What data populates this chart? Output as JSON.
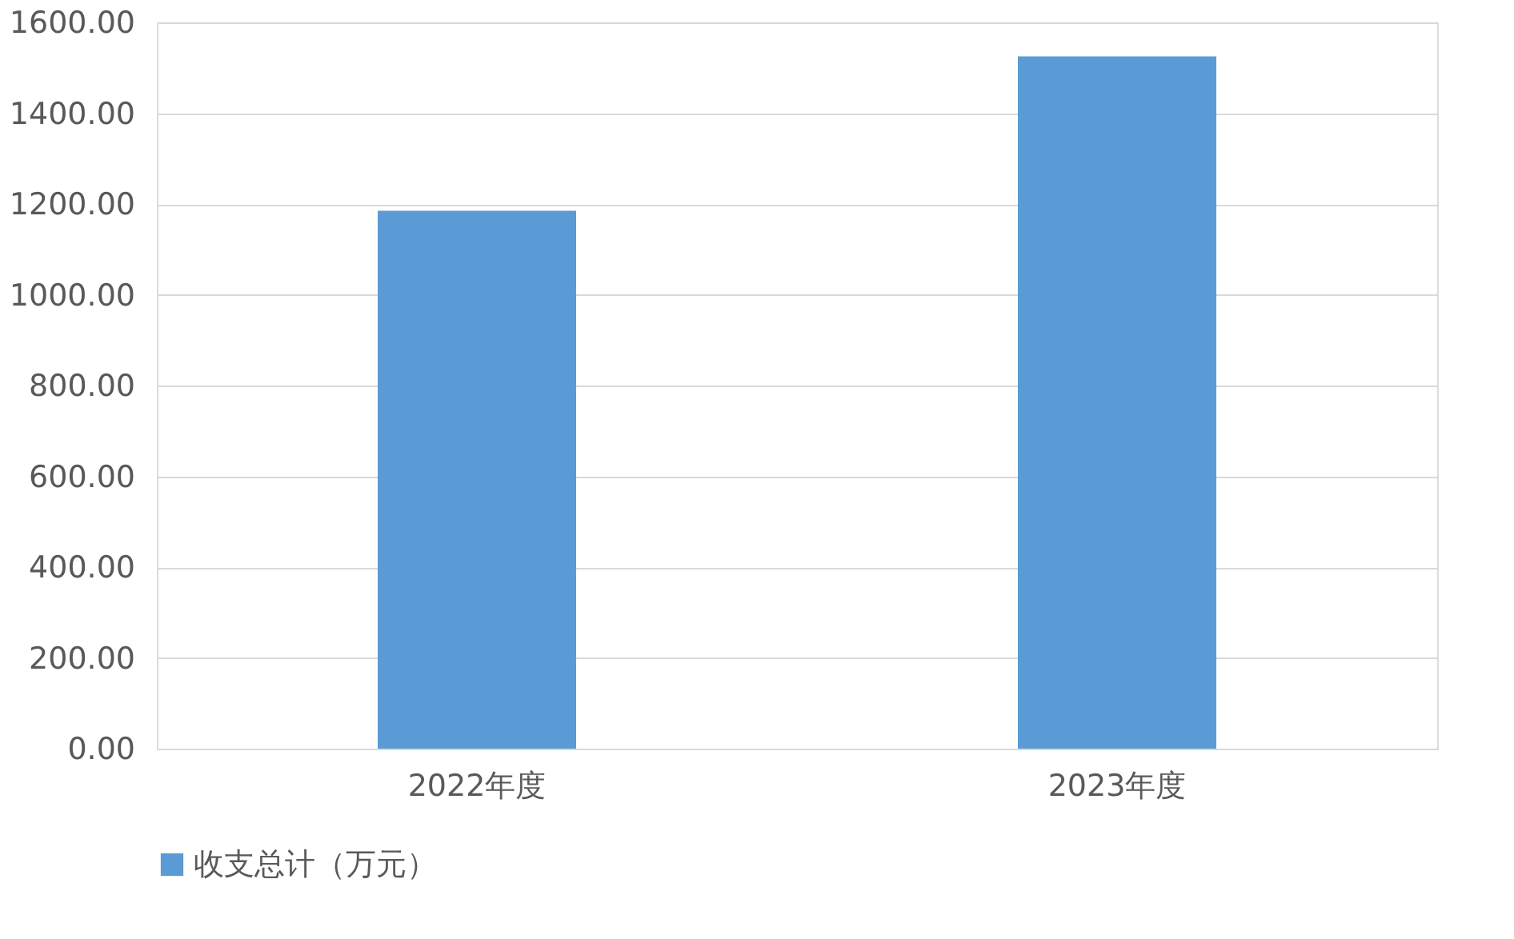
{
  "chart_data": {
    "type": "bar",
    "categories": [
      "2022年度",
      "2023年度"
    ],
    "series": [
      {
        "name": "收支总计（万元）",
        "color": "#5b9bd5",
        "values": [
          1185,
          1525
        ]
      }
    ],
    "ylim": [
      0,
      1600
    ],
    "yticks": [
      {
        "value": 0,
        "label": "0.00"
      },
      {
        "value": 200,
        "label": "200.00"
      },
      {
        "value": 400,
        "label": "400.00"
      },
      {
        "value": 600,
        "label": "600.00"
      },
      {
        "value": 800,
        "label": "800.00"
      },
      {
        "value": 1000,
        "label": "1000.00"
      },
      {
        "value": 1200,
        "label": "1200.00"
      },
      {
        "value": 1400,
        "label": "1400.00"
      },
      {
        "value": 1600,
        "label": "1600.00"
      }
    ],
    "grid": "y",
    "legend": "bottom"
  }
}
